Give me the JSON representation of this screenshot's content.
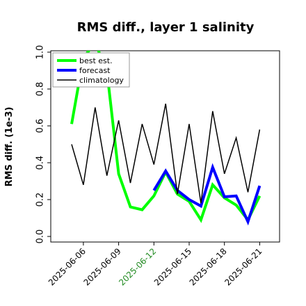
{
  "chart_data": {
    "type": "line",
    "title": "RMS diff., layer 1 salinity",
    "xlabel": "",
    "ylabel": "RMS diff. (1e-3)",
    "ylim": [
      0.0,
      1.0
    ],
    "yticks": [
      "0.0",
      "0.2",
      "0.4",
      "0.6",
      "0.8",
      "1.0"
    ],
    "xticks": [
      "2025-06-06",
      "2025-06-09",
      "2025-06-12",
      "2025-06-15",
      "2025-06-18",
      "2025-06-21"
    ],
    "highlighted_xtick": "2025-06-12",
    "highlight_color": "#228B22",
    "legend_position": "upper-left",
    "grid": false,
    "series": [
      {
        "name": "best est.",
        "color": "#00ff00",
        "x": [
          "2025-06-05",
          "2025-06-06",
          "2025-06-07",
          "2025-06-08",
          "2025-06-09",
          "2025-06-10",
          "2025-06-11",
          "2025-06-12",
          "2025-06-13",
          "2025-06-14",
          "2025-06-15",
          "2025-06-16",
          "2025-06-17",
          "2025-06-18",
          "2025-06-19",
          "2025-06-20",
          "2025-06-21"
        ],
        "values": [
          0.61,
          0.97,
          1.05,
          0.9,
          0.34,
          0.16,
          0.145,
          0.22,
          0.35,
          0.23,
          0.19,
          0.09,
          0.28,
          0.21,
          0.17,
          0.09,
          0.22
        ]
      },
      {
        "name": "forecast",
        "color": "#0000ff",
        "x": [
          "2025-06-12",
          "2025-06-13",
          "2025-06-14",
          "2025-06-15",
          "2025-06-16",
          "2025-06-17",
          "2025-06-18",
          "2025-06-19",
          "2025-06-20",
          "2025-06-21"
        ],
        "values": [
          0.25,
          0.355,
          0.25,
          0.2,
          0.165,
          0.375,
          0.215,
          0.22,
          0.08,
          0.275
        ]
      },
      {
        "name": "climatology",
        "color": "#000000",
        "x": [
          "2025-06-05",
          "2025-06-06",
          "2025-06-07",
          "2025-06-08",
          "2025-06-09",
          "2025-06-10",
          "2025-06-11",
          "2025-06-12",
          "2025-06-13",
          "2025-06-14",
          "2025-06-15",
          "2025-06-16",
          "2025-06-17",
          "2025-06-18",
          "2025-06-19",
          "2025-06-20",
          "2025-06-21"
        ],
        "values": [
          0.5,
          0.28,
          0.7,
          0.33,
          0.63,
          0.29,
          0.61,
          0.39,
          0.72,
          0.23,
          0.61,
          0.18,
          0.68,
          0.34,
          0.535,
          0.24,
          0.58
        ]
      }
    ]
  }
}
